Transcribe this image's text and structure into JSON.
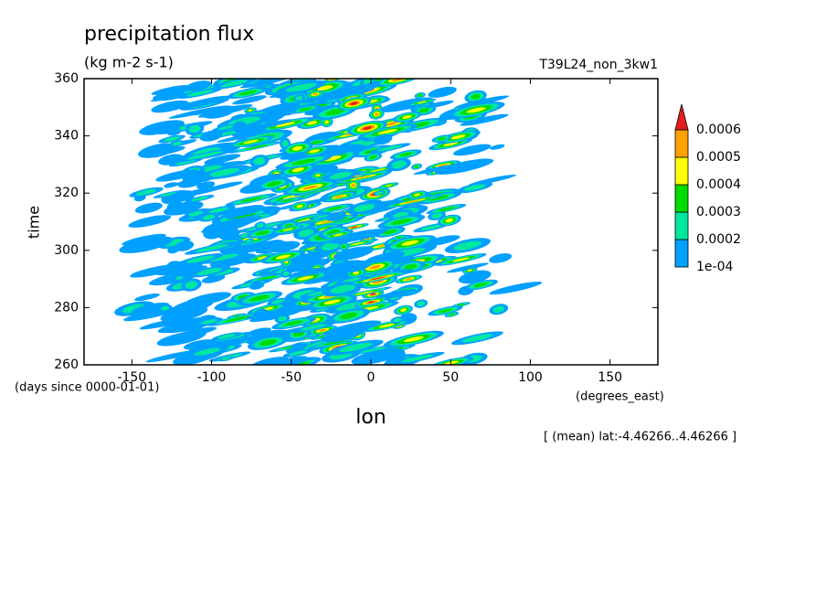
{
  "chart_data": {
    "type": "contour",
    "title": "precipitation flux",
    "subtitle": "(kg m-2 s-1)",
    "run_label": "T39L24_non_3kw1",
    "x_label": "lon",
    "y_label": "time",
    "x_units": "(degrees_east)",
    "y_units": "(days since 0000-01-01)",
    "note": "[ (mean) lat:-4.46266..4.46266 ]",
    "xlim": [
      -180,
      180
    ],
    "xticks": [
      -150,
      -100,
      -50,
      0,
      50,
      100,
      150
    ],
    "ylim": [
      260,
      360
    ],
    "yticks": [
      260,
      280,
      300,
      320,
      340,
      360
    ],
    "colorbar": {
      "levels": [
        {
          "value": 0.0001,
          "label": "1e-04"
        },
        0.0002,
        0.0003,
        0.0004,
        0.0005,
        0.0006
      ],
      "colors": [
        "#00a0ff",
        "#00e8a0",
        "#00dc00",
        "#ffff00",
        "#ffa000",
        "#e61e1e"
      ]
    }
  }
}
